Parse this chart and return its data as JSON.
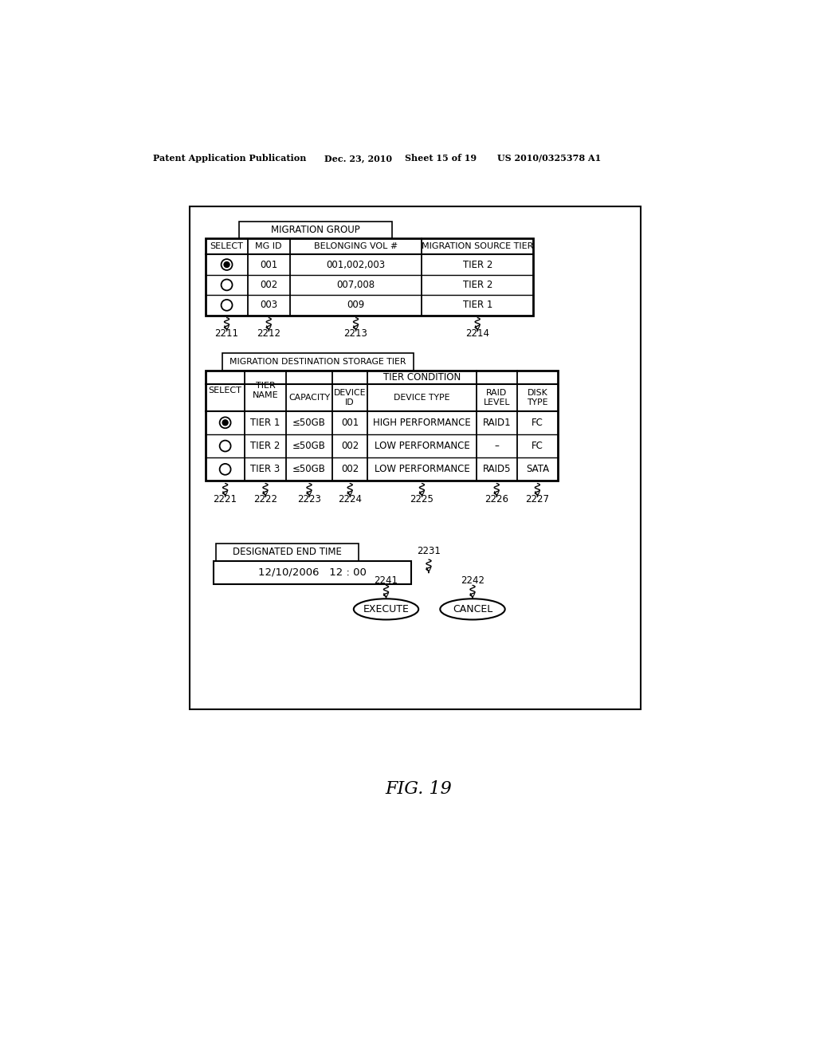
{
  "bg_color": "#ffffff",
  "header_line1": "Patent Application Publication",
  "header_line2": "Dec. 23, 2010",
  "header_line3": "Sheet 15 of 19",
  "header_line4": "US 2010/0325378 A1",
  "fig_label": "FIG. 19",
  "migration_group_label": "MIGRATION GROUP",
  "mg_headers": [
    "SELECT",
    "MG ID",
    "BELONGING VOL #",
    "MIGRATION SOURCE TIER"
  ],
  "mg_rows": [
    [
      "radio_filled",
      "001",
      "001,002,003",
      "TIER 2"
    ],
    [
      "radio_empty",
      "002",
      "007,008",
      "TIER 2"
    ],
    [
      "radio_empty",
      "003",
      "009",
      "TIER 1"
    ]
  ],
  "mg_ref_labels": [
    "2211",
    "2212",
    "2213",
    "2214"
  ],
  "dest_label": "MIGRATION DESTINATION STORAGE TIER",
  "dest_rows": [
    [
      "radio_filled",
      "TIER 1",
      "≤50GB",
      "001",
      "HIGH PERFORMANCE",
      "RAID1",
      "FC"
    ],
    [
      "radio_empty",
      "TIER 2",
      "≤50GB",
      "002",
      "LOW PERFORMANCE",
      "–",
      "FC"
    ],
    [
      "radio_empty",
      "TIER 3",
      "≤50GB",
      "002",
      "LOW PERFORMANCE",
      "RAID5",
      "SATA"
    ]
  ],
  "dest_ref_labels": [
    "2221",
    "2222",
    "2223",
    "2224",
    "2225",
    "2226",
    "2227"
  ],
  "end_time_label": "DESIGNATED END TIME",
  "end_time_ref": "2231",
  "end_time_value": "12/10/2006   12 : 00",
  "execute_label": "EXECUTE",
  "cancel_label": "CANCEL",
  "execute_ref": "2241",
  "cancel_ref": "2242"
}
